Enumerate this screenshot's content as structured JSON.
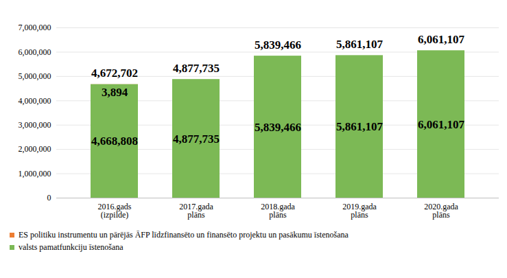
{
  "chart_data": {
    "type": "bar",
    "stacked": true,
    "data_labels": true,
    "grid": true,
    "legend": "bottom",
    "categories": [
      "2016.gads\n(izpilde)",
      "2017.gada\nplāns",
      "2018.gada\nplāns",
      "2019.gada\nplāns",
      "2020.gada\nplāns"
    ],
    "series": [
      {
        "name": "ES politiku instrumentu un pārējās ĀFP līdzfinansēto un finansēto projektu un pasākumu īstenošana",
        "color": "#ed7d31",
        "values": [
          3894,
          null,
          null,
          null,
          null
        ],
        "value_labels": [
          "3,894",
          null,
          null,
          null,
          null
        ]
      },
      {
        "name": "valsts pamatfunkciju īstenošana",
        "color": "#7cb955",
        "values": [
          4668808,
          4877735,
          5839466,
          5861107,
          6061107
        ],
        "value_labels": [
          "4,668,808",
          "4,877,735",
          "5,839,466",
          "5,861,107",
          "6,061,107"
        ]
      }
    ],
    "totals": [
      4672702,
      4877735,
      5839466,
      5861107,
      6061107
    ],
    "total_labels": [
      "4,672,702",
      "4,877,735",
      "5,839,466",
      "5,861,107",
      "6,061,107"
    ],
    "ylim": [
      0,
      7000000
    ],
    "yticks": [
      0,
      {
        "value": 1000000,
        "label": "1,000,000"
      },
      {
        "value": 2000000,
        "label": "2,000,000"
      },
      {
        "value": 3000000,
        "label": "3,000,000"
      },
      {
        "value": 4000000,
        "label": "4,000,000"
      },
      {
        "value": 5000000,
        "label": "5,000,000"
      },
      {
        "value": 6000000,
        "label": "6,000,000"
      },
      {
        "value": 7000000,
        "label": "7,000,000"
      }
    ]
  }
}
